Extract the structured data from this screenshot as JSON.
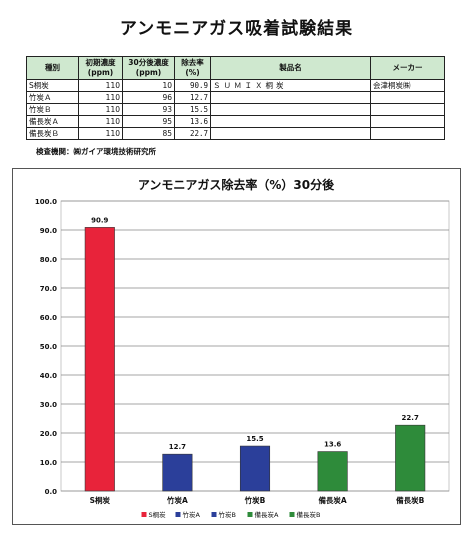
{
  "page_title": "アンモニアガス吸着試験結果",
  "table": {
    "headers": [
      "種別",
      "初期濃度\n(ppm)",
      "30分後濃度\n(ppm)",
      "除去率\n(%)",
      "製品名",
      "メーカー"
    ],
    "rows": [
      [
        "S桐炭",
        "110",
        "10",
        "90.9",
        "ＳＵＭＩＸ桐炭",
        "会津桐炭㈱"
      ],
      [
        "竹炭Ａ",
        "110",
        "96",
        "12.7",
        "",
        ""
      ],
      [
        "竹炭Ｂ",
        "110",
        "93",
        "15.5",
        "",
        ""
      ],
      [
        "備長炭Ａ",
        "110",
        "95",
        "13.6",
        "",
        ""
      ],
      [
        "備長炭Ｂ",
        "110",
        "85",
        "22.7",
        "",
        ""
      ]
    ]
  },
  "inspection_note": "検査機関：㈱ガイア環境技術研究所",
  "chart_data": {
    "type": "bar",
    "title": "アンモニアガス除去率（%）30分後",
    "categories": [
      "S桐炭",
      "竹炭A",
      "竹炭B",
      "備長炭A",
      "備長炭B"
    ],
    "values": [
      90.9,
      12.7,
      15.5,
      13.6,
      22.7
    ],
    "data_labels": [
      "90.9",
      "12.7",
      "15.5",
      "13.6",
      "22.7"
    ],
    "colors": [
      "#e8233a",
      "#2b3f9a",
      "#2b3f9a",
      "#2e8b3a",
      "#2e8b3a"
    ],
    "ylim": [
      0,
      100
    ],
    "yticks": [
      "0.0",
      "10.0",
      "20.0",
      "30.0",
      "40.0",
      "50.0",
      "60.0",
      "70.0",
      "80.0",
      "90.0",
      "100.0"
    ],
    "xlabel": "",
    "ylabel": "",
    "grid": true,
    "legend_position": "bottom",
    "legend": [
      {
        "name": "S桐炭",
        "color": "#e8233a"
      },
      {
        "name": "竹炭A",
        "color": "#2b3f9a"
      },
      {
        "name": "竹炭B",
        "color": "#2b3f9a"
      },
      {
        "name": "備長炭A",
        "color": "#2e8b3a"
      },
      {
        "name": "備長炭B",
        "color": "#2e8b3a"
      }
    ]
  }
}
